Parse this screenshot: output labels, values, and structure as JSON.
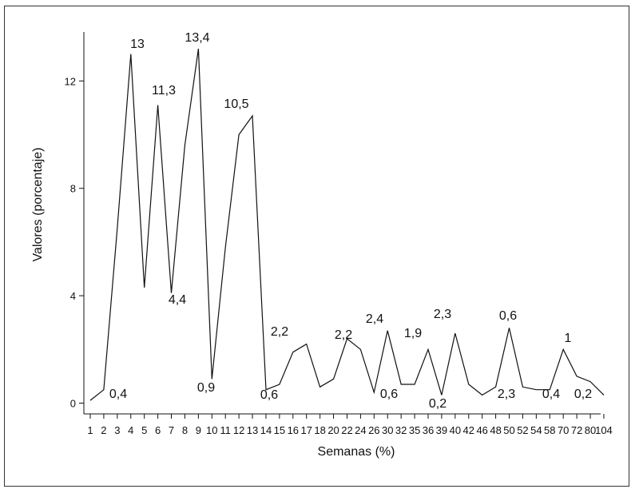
{
  "chart_data": {
    "type": "line",
    "title": "",
    "xlabel": "Semanas (%)",
    "ylabel": "Valores (porcentaje)",
    "ylim": [
      -0.3,
      14
    ],
    "y_ticks": [
      0,
      4,
      8,
      12
    ],
    "x_ticks": [
      "1",
      "2",
      "3",
      "4",
      "5",
      "6",
      "7",
      "8",
      "9",
      "10",
      "11",
      "12",
      "13",
      "14",
      "15",
      "16",
      "17",
      "18",
      "20",
      "22",
      "24",
      "26",
      "30",
      "32",
      "35",
      "36",
      "39",
      "40",
      "42",
      "46",
      "48",
      "50",
      "52",
      "54",
      "58",
      "70",
      "72",
      "80",
      "104"
    ],
    "series": [
      {
        "x": [
          1,
          2,
          3,
          4,
          5,
          6,
          7,
          8,
          9,
          10,
          11,
          12,
          13,
          14,
          15,
          16,
          17,
          18,
          20,
          22,
          24,
          26,
          30,
          32,
          35,
          36,
          39,
          40,
          42,
          46,
          48,
          50,
          52,
          54,
          58,
          70,
          72,
          80,
          104
        ],
        "values": [
          0.1,
          0.5,
          6.5,
          13,
          4.3,
          11.1,
          4.1,
          9.6,
          13.2,
          0.9,
          5.8,
          10.0,
          10.7,
          0.5,
          0.7,
          1.9,
          2.2,
          0.6,
          0.9,
          2.4,
          2.0,
          0.4,
          2.7,
          0.7,
          0.7,
          2.0,
          0.3,
          2.6,
          0.7,
          0.3,
          0.6,
          2.8,
          0.6,
          0.5,
          0.5,
          2.0,
          1.0,
          0.8,
          0.3
        ]
      }
    ],
    "annotations": [
      "0,4",
      "13",
      "11,3",
      "4,4",
      "13,4",
      "0,9",
      "10,5",
      "0,6",
      "2,2",
      "2,2",
      "2,4",
      "0,6",
      "1,9",
      "0,2",
      "2,3",
      "2,3",
      "0,6",
      "0,4",
      "1",
      "0,2"
    ],
    "grid": false,
    "legend": "none"
  }
}
